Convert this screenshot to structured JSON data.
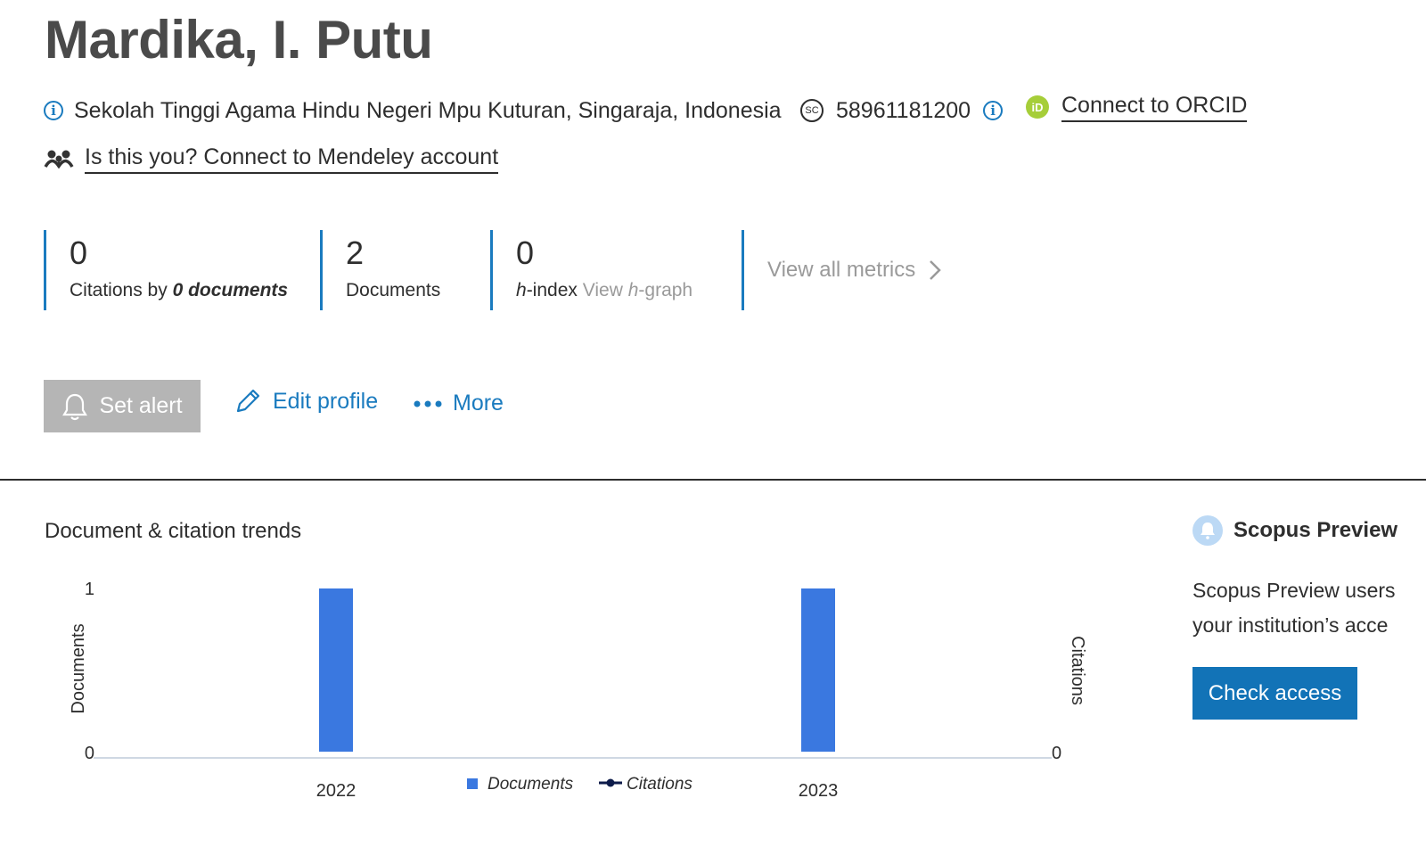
{
  "author": {
    "name": "Mardika, I. Putu",
    "affiliation": "Sekolah Tinggi Agama Hindu Negeri Mpu Kuturan, Singaraja, Indonesia",
    "scopus_id": "58961181200",
    "orcid_link": "Connect to ORCID",
    "mendeley_link": "Is this you? Connect to Mendeley account"
  },
  "metrics": {
    "citations": {
      "value": "0",
      "label_prefix": "Citations by ",
      "label_bold": "0 documents"
    },
    "documents": {
      "value": "2",
      "label": "Documents"
    },
    "hindex": {
      "value": "0",
      "label_h": "h",
      "label_rest": "-index",
      "graph_prefix": "View ",
      "graph_h": "h",
      "graph_rest": "-graph"
    },
    "view_all": "View all metrics"
  },
  "actions": {
    "set_alert": "Set alert",
    "edit_profile": "Edit profile",
    "more": "More"
  },
  "chart": {
    "heading": "Document & citation trends"
  },
  "chart_data": {
    "type": "bar",
    "categories": [
      "2022",
      "2023"
    ],
    "series": [
      {
        "name": "Documents",
        "values": [
          1,
          1
        ],
        "color": "#3a78e0"
      },
      {
        "name": "Citations",
        "values": [
          0,
          0
        ],
        "color": "#0d1b4a"
      }
    ],
    "ylabel": "Documents",
    "y2label": "Citations",
    "ylim": [
      0,
      1
    ],
    "y_ticks": [
      "0",
      "1"
    ],
    "y2_ticks": [
      "0"
    ],
    "legend": "bottom-center"
  },
  "preview": {
    "title": "Scopus Preview",
    "text_line1": "Scopus Preview users",
    "text_line2": "your institution’s acce",
    "button": "Check access"
  },
  "colors": {
    "accent": "#1a7bbf",
    "button_primary": "#1273b7",
    "disabled_button": "#b5b5b5"
  }
}
